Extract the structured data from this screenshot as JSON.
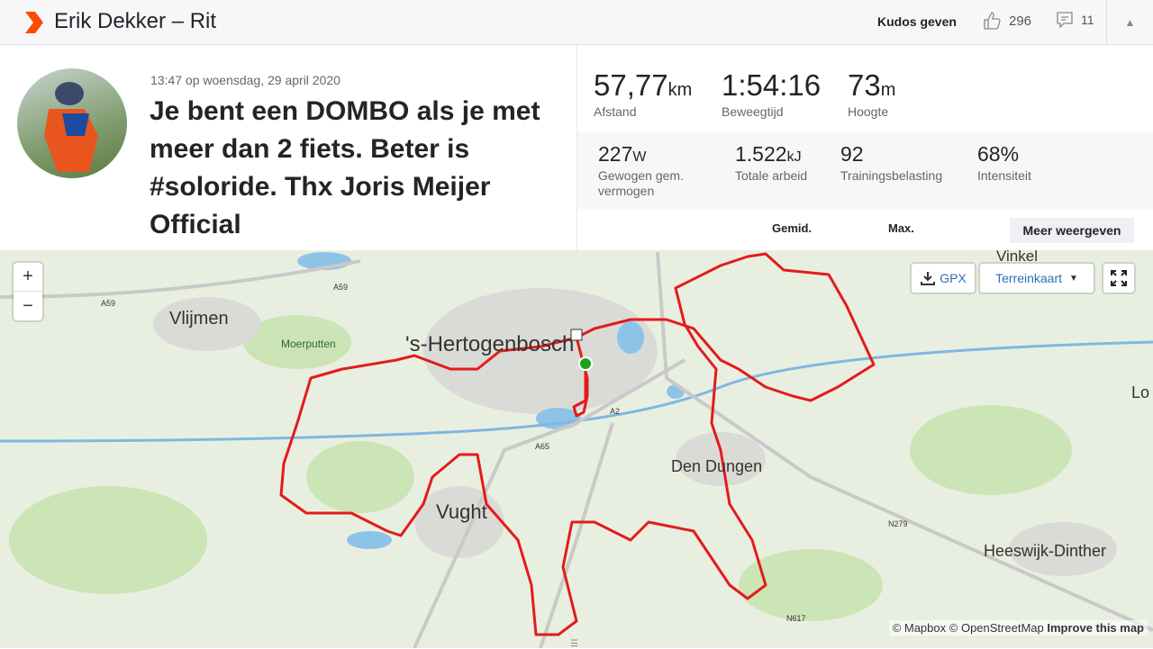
{
  "header": {
    "title": "Erik Dekker – Rit",
    "kudos_label": "Kudos geven",
    "kudos_count": "296",
    "comment_count": "11",
    "brand_color": "#fc4c02"
  },
  "activity": {
    "date": "13:47 op woensdag, 29 april 2020",
    "title": "Je bent een DOMBO als je met meer dan 2 fiets. Beter is #soloride. Thx Joris Meijer Official"
  },
  "stats": {
    "primary": [
      {
        "value": "57,77",
        "unit": "km",
        "label": "Afstand"
      },
      {
        "value": "1:54:16",
        "unit": "",
        "label": "Beweegtijd"
      },
      {
        "value": "73",
        "unit": "m",
        "label": "Hoogte"
      }
    ],
    "secondary": [
      {
        "value": "227",
        "unit": "W",
        "label": "Gewogen gem. vermogen"
      },
      {
        "value": "1.522",
        "unit": "kJ",
        "label": "Totale arbeid"
      },
      {
        "value": "92",
        "unit": "",
        "label": "Trainingsbelasting"
      },
      {
        "value": "68%",
        "unit": "",
        "label": "Intensiteit"
      }
    ],
    "col_avg": "Gemid.",
    "col_max": "Max.",
    "more_label": "Meer weergeven"
  },
  "map": {
    "gpx_label": "GPX",
    "style_label": "Terreinkaart",
    "zoom_in": "+",
    "zoom_out": "−",
    "route_color": "#e31b1b",
    "places": [
      {
        "name": "Vlijmen"
      },
      {
        "name": "Moerputten"
      },
      {
        "name": "'s-Hertogenbosch"
      },
      {
        "name": "Vught"
      },
      {
        "name": "Den Dungen"
      },
      {
        "name": "Heeswijk-Dinther"
      },
      {
        "name": "Vinkel"
      },
      {
        "name": "Lo"
      }
    ],
    "roads": [
      "A59",
      "A59",
      "A2",
      "A65",
      "N279",
      "N617"
    ],
    "attribution": {
      "mapbox": "© Mapbox",
      "osm": "© OpenStreetMap",
      "improve": "Improve this map"
    }
  }
}
